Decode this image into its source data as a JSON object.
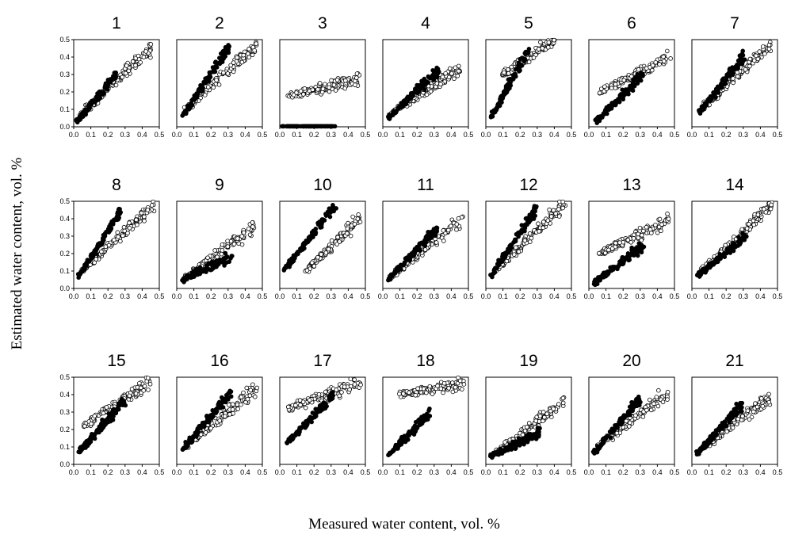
{
  "figure": {
    "ylabel": "Estimated water content, vol. %",
    "xlabel": "Measured water content, vol. %"
  },
  "chart_data": {
    "type": "scatter",
    "panels": [
      "1",
      "2",
      "3",
      "4",
      "5",
      "6",
      "7",
      "8",
      "9",
      "10",
      "11",
      "12",
      "13",
      "14",
      "15",
      "16",
      "17",
      "18",
      "19",
      "20",
      "21"
    ],
    "grid": "3 rows x 7 columns",
    "xlim": [
      0.0,
      0.5
    ],
    "ylim": [
      0.0,
      0.5
    ],
    "x_ticks": [
      "0.0",
      "0.1",
      "0.2",
      "0.3",
      "0.4",
      "0.5"
    ],
    "y_ticks": [
      "0.0",
      "0.1",
      "0.2",
      "0.3",
      "0.4",
      "0.5"
    ],
    "grid_lines": false,
    "legend": "none",
    "marker_styles": [
      "filled black circle",
      "open white circle"
    ],
    "series_trends": [
      {
        "panel": "1",
        "filled": [
          [
            0.02,
            0.03
          ],
          [
            0.25,
            0.3
          ]
        ],
        "open": [
          [
            0.02,
            0.05
          ],
          [
            0.45,
            0.45
          ]
        ]
      },
      {
        "panel": "2",
        "filled": [
          [
            0.04,
            0.07
          ],
          [
            0.3,
            0.45
          ]
        ],
        "open": [
          [
            0.05,
            0.1
          ],
          [
            0.47,
            0.47
          ]
        ]
      },
      {
        "panel": "3",
        "filled": [
          [
            0.02,
            0.0
          ],
          [
            0.32,
            0.0
          ]
        ],
        "open": [
          [
            0.05,
            0.18
          ],
          [
            0.47,
            0.27
          ]
        ]
      },
      {
        "panel": "4",
        "filled": [
          [
            0.03,
            0.05
          ],
          [
            0.33,
            0.33
          ]
        ],
        "open": [
          [
            0.04,
            0.07
          ],
          [
            0.46,
            0.34
          ]
        ]
      },
      {
        "panel": "5",
        "filled": [
          [
            0.03,
            0.05
          ],
          [
            0.25,
            0.45
          ]
        ],
        "open": [
          [
            0.1,
            0.3
          ],
          [
            0.4,
            0.5
          ]
        ]
      },
      {
        "panel": "6",
        "filled": [
          [
            0.03,
            0.02
          ],
          [
            0.32,
            0.3
          ]
        ],
        "open": [
          [
            0.06,
            0.2
          ],
          [
            0.47,
            0.4
          ]
        ]
      },
      {
        "panel": "7",
        "filled": [
          [
            0.04,
            0.08
          ],
          [
            0.3,
            0.4
          ]
        ],
        "open": [
          [
            0.05,
            0.1
          ],
          [
            0.46,
            0.47
          ]
        ]
      },
      {
        "panel": "8",
        "filled": [
          [
            0.03,
            0.07
          ],
          [
            0.28,
            0.45
          ]
        ],
        "open": [
          [
            0.05,
            0.1
          ],
          [
            0.47,
            0.48
          ]
        ]
      },
      {
        "panel": "9",
        "filled": [
          [
            0.03,
            0.05
          ],
          [
            0.32,
            0.18
          ]
        ],
        "open": [
          [
            0.05,
            0.06
          ],
          [
            0.46,
            0.36
          ]
        ]
      },
      {
        "panel": "10",
        "filled": [
          [
            0.02,
            0.1
          ],
          [
            0.32,
            0.47
          ]
        ],
        "open": [
          [
            0.15,
            0.1
          ],
          [
            0.47,
            0.4
          ]
        ]
      },
      {
        "panel": "11",
        "filled": [
          [
            0.03,
            0.05
          ],
          [
            0.32,
            0.35
          ]
        ],
        "open": [
          [
            0.04,
            0.06
          ],
          [
            0.46,
            0.4
          ]
        ]
      },
      {
        "panel": "12",
        "filled": [
          [
            0.03,
            0.07
          ],
          [
            0.3,
            0.47
          ]
        ],
        "open": [
          [
            0.05,
            0.1
          ],
          [
            0.47,
            0.49
          ]
        ]
      },
      {
        "panel": "13",
        "filled": [
          [
            0.03,
            0.03
          ],
          [
            0.32,
            0.25
          ]
        ],
        "open": [
          [
            0.06,
            0.2
          ],
          [
            0.47,
            0.39
          ]
        ]
      },
      {
        "panel": "14",
        "filled": [
          [
            0.03,
            0.07
          ],
          [
            0.32,
            0.3
          ]
        ],
        "open": [
          [
            0.05,
            0.1
          ],
          [
            0.47,
            0.48
          ]
        ]
      },
      {
        "panel": "15",
        "filled": [
          [
            0.03,
            0.07
          ],
          [
            0.3,
            0.37
          ]
        ],
        "open": [
          [
            0.06,
            0.22
          ],
          [
            0.45,
            0.48
          ]
        ]
      },
      {
        "panel": "16",
        "filled": [
          [
            0.03,
            0.08
          ],
          [
            0.32,
            0.42
          ]
        ],
        "open": [
          [
            0.05,
            0.1
          ],
          [
            0.47,
            0.44
          ]
        ]
      },
      {
        "panel": "17",
        "filled": [
          [
            0.04,
            0.12
          ],
          [
            0.32,
            0.4
          ]
        ],
        "open": [
          [
            0.05,
            0.32
          ],
          [
            0.47,
            0.47
          ]
        ]
      },
      {
        "panel": "18",
        "filled": [
          [
            0.03,
            0.05
          ],
          [
            0.28,
            0.3
          ]
        ],
        "open": [
          [
            0.1,
            0.4
          ],
          [
            0.47,
            0.46
          ]
        ]
      },
      {
        "panel": "19",
        "filled": [
          [
            0.03,
            0.05
          ],
          [
            0.32,
            0.18
          ]
        ],
        "open": [
          [
            0.05,
            0.06
          ],
          [
            0.46,
            0.36
          ]
        ]
      },
      {
        "panel": "20",
        "filled": [
          [
            0.03,
            0.07
          ],
          [
            0.3,
            0.38
          ]
        ],
        "open": [
          [
            0.05,
            0.1
          ],
          [
            0.47,
            0.42
          ]
        ]
      },
      {
        "panel": "21",
        "filled": [
          [
            0.03,
            0.06
          ],
          [
            0.3,
            0.35
          ]
        ],
        "open": [
          [
            0.05,
            0.08
          ],
          [
            0.46,
            0.4
          ]
        ]
      }
    ]
  }
}
